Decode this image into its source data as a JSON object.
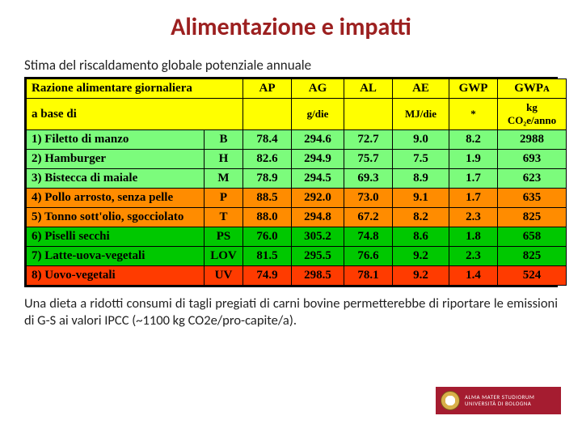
{
  "title": "Alimentazione e impatti",
  "subtitle": "Stima del riscaldamento globale potenziale annuale",
  "table": {
    "header_bg": "#ffff00",
    "header": {
      "left_l1": "Razione alimentare giornaliera",
      "left_l2": "a base di",
      "cols_top": [
        "AP",
        "AG",
        "AL",
        "AE",
        "GWP",
        "GWPᴀ"
      ],
      "units": [
        "",
        "g/die",
        "",
        "MJ/die",
        "*",
        "kg CO₂e/anno"
      ]
    },
    "rows": [
      {
        "bg": "#7cfc7c",
        "label": "1) Filetto di manzo",
        "code": "B",
        "v": [
          "78.4",
          "294.6",
          "72.7",
          "9.0",
          "8.2",
          "2988"
        ]
      },
      {
        "bg": "#7cfc7c",
        "label": "2) Hamburger",
        "code": "H",
        "v": [
          "82.6",
          "294.9",
          "75.7",
          "7.5",
          "1.9",
          "693"
        ]
      },
      {
        "bg": "#7cfc7c",
        "label": "3) Bistecca di maiale",
        "code": "M",
        "v": [
          "78.9",
          "294.5",
          "69.3",
          "8.9",
          "1.7",
          "623"
        ]
      },
      {
        "bg": "#ff8c00",
        "label": "4) Pollo arrosto, senza pelle",
        "code": "P",
        "v": [
          "88.5",
          "292.0",
          "73.0",
          "9.1",
          "1.7",
          "635"
        ]
      },
      {
        "bg": "#ff8c00",
        "label": "5) Tonno sott'olio, sgocciolato",
        "code": "T",
        "v": [
          "88.0",
          "294.8",
          "67.2",
          "8.2",
          "2.3",
          "825"
        ]
      },
      {
        "bg": "#00c800",
        "label": "6) Piselli secchi",
        "code": "PS",
        "v": [
          "76.0",
          "305.2",
          "74.8",
          "8.6",
          "1.8",
          "658"
        ]
      },
      {
        "bg": "#00c800",
        "label": "7) Latte-uova-vegetali",
        "code": "LOV",
        "v": [
          "81.5",
          "295.5",
          "76.6",
          "9.2",
          "2.3",
          "825"
        ]
      },
      {
        "bg": "#ff3b00",
        "label": "8) Uovo-vegetali",
        "code": "UV",
        "v": [
          "74.9",
          "298.5",
          "78.1",
          "9.2",
          "1.4",
          "524"
        ]
      }
    ],
    "col_widths": [
      "220px",
      "48px",
      "60px",
      "65px",
      "60px",
      "70px",
      "60px",
      "85px"
    ],
    "font_size_header": 15,
    "font_size_cells": 15
  },
  "footer": "Una dieta a ridotti consumi di tagli pregiati di carni bovine permetterebbe di riportare le emissioni di G-S ai valori IPCC (~1100 kg CO2e/pro-capite/a).",
  "logo": {
    "line1": "ALMA MATER STUDIORUM",
    "line2": "UNIVERSITÀ DI BOLOGNA",
    "bg": "#a51c30"
  }
}
